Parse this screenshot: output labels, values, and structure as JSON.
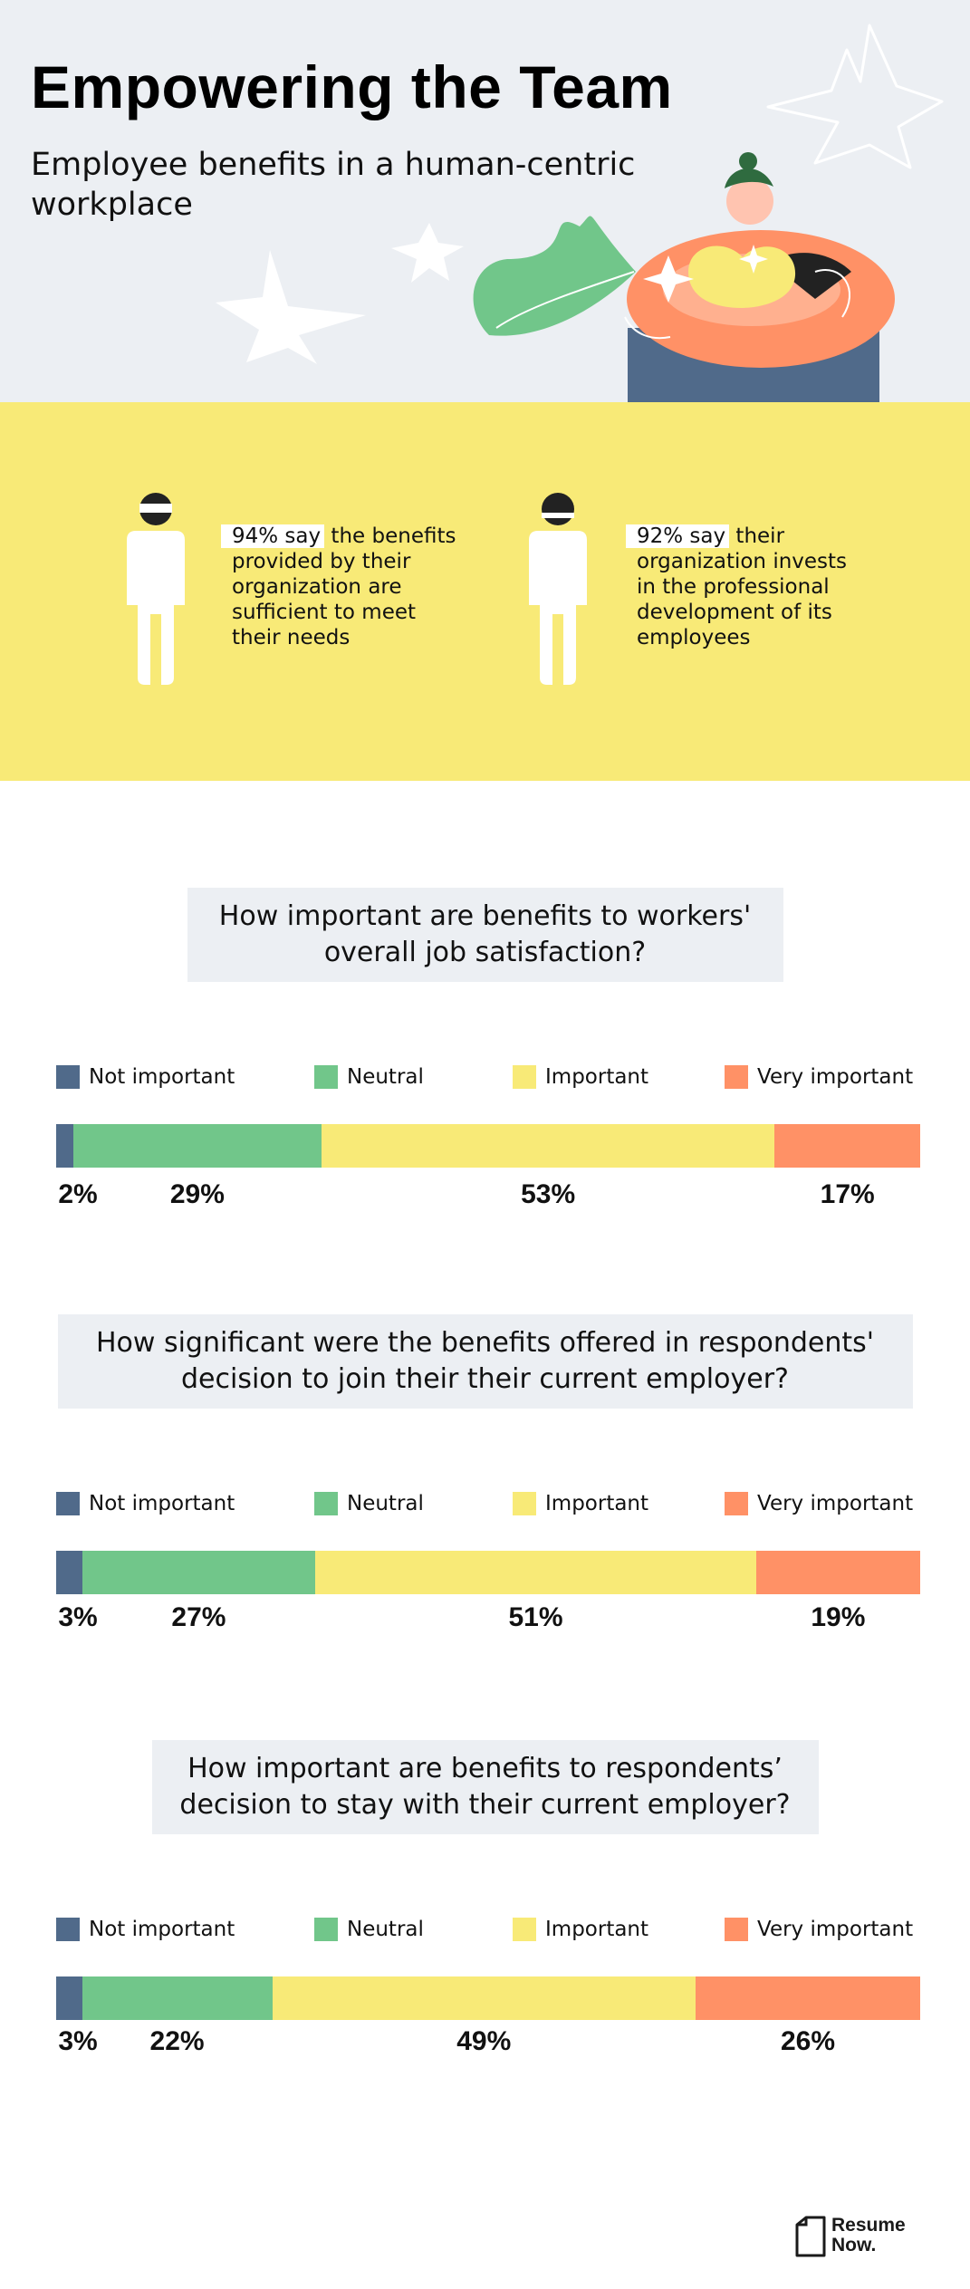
{
  "header": {
    "title": "Empowering the Team",
    "subtitle": "Employee benefits in a human-centric workplace"
  },
  "stats": [
    {
      "highlight": "94% say",
      "text": " the benefits provided by their organization are sufficient to meet their needs"
    },
    {
      "highlight": "92% say",
      "text": " their organization invests in the professional development of its employees"
    }
  ],
  "legend": [
    "Not important",
    "Neutral",
    "Important",
    "Very important"
  ],
  "colors": {
    "not_important": "#506a8a",
    "neutral": "#71c68a",
    "important": "#f8ea77",
    "very_important": "#ff9166",
    "stats_bg": "#f8ea77",
    "hero_bg": "#eceff3"
  },
  "chart_data": [
    {
      "type": "bar",
      "stacked": true,
      "orientation": "horizontal",
      "title": "How important are benefits to workers' overall job satisfaction?",
      "categories": [
        "Not important",
        "Neutral",
        "Important",
        "Very important"
      ],
      "values": [
        2,
        29,
        53,
        17
      ],
      "labels": [
        "2%",
        "29%",
        "53%",
        "17%"
      ],
      "legend_position": "top"
    },
    {
      "type": "bar",
      "stacked": true,
      "orientation": "horizontal",
      "title": "How significant were the benefits offered in respondents' decision to join their their current employer?",
      "categories": [
        "Not important",
        "Neutral",
        "Important",
        "Very important"
      ],
      "values": [
        3,
        27,
        51,
        19
      ],
      "labels": [
        "3%",
        "27%",
        "51%",
        "19%"
      ],
      "legend_position": "top"
    },
    {
      "type": "bar",
      "stacked": true,
      "orientation": "horizontal",
      "title": "How important are benefits to respondents’ decision to stay with their current employer?",
      "categories": [
        "Not important",
        "Neutral",
        "Important",
        "Very important"
      ],
      "values": [
        3,
        22,
        49,
        26
      ],
      "labels": [
        "3%",
        "22%",
        "49%",
        "26%"
      ],
      "legend_position": "top"
    }
  ],
  "logo": {
    "line1": "Resume",
    "line2": "Now."
  }
}
